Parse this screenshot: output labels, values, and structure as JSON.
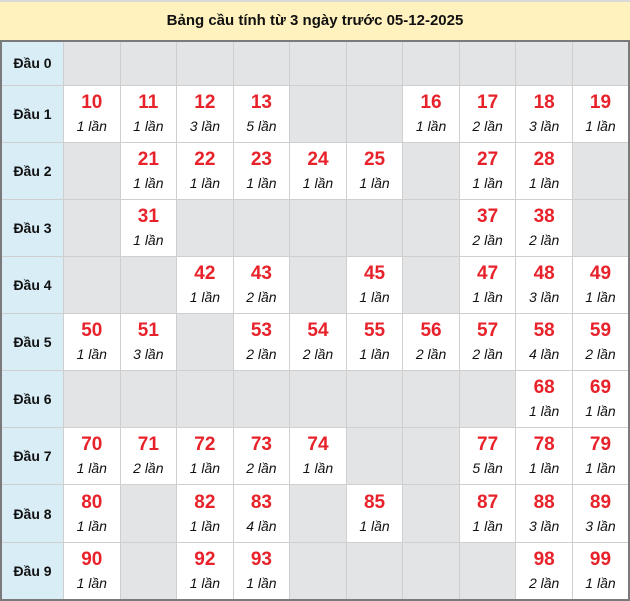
{
  "title": "Bảng cầu tính từ 3 ngày trước 05-12-2025",
  "colors": {
    "number": "#e8222b",
    "header_bg": "#d9edf7",
    "title_bg": "#fff2bf",
    "empty_bg": "#e3e4e6"
  },
  "rows": [
    {
      "label": "Đầu 0",
      "cells": [
        null,
        null,
        null,
        null,
        null,
        null,
        null,
        null,
        null,
        null
      ]
    },
    {
      "label": "Đầu 1",
      "cells": [
        {
          "n": "10",
          "c": "1 lần"
        },
        {
          "n": "11",
          "c": "1 lần"
        },
        {
          "n": "12",
          "c": "3 lần"
        },
        {
          "n": "13",
          "c": "5 lần"
        },
        null,
        null,
        {
          "n": "16",
          "c": "1 lần"
        },
        {
          "n": "17",
          "c": "2 lần"
        },
        {
          "n": "18",
          "c": "3 lần"
        },
        {
          "n": "19",
          "c": "1 lần"
        }
      ]
    },
    {
      "label": "Đầu 2",
      "cells": [
        null,
        {
          "n": "21",
          "c": "1 lần"
        },
        {
          "n": "22",
          "c": "1 lần"
        },
        {
          "n": "23",
          "c": "1 lần"
        },
        {
          "n": "24",
          "c": "1 lần"
        },
        {
          "n": "25",
          "c": "1 lần"
        },
        null,
        {
          "n": "27",
          "c": "1 lần"
        },
        {
          "n": "28",
          "c": "1 lần"
        },
        null
      ]
    },
    {
      "label": "Đầu 3",
      "cells": [
        null,
        {
          "n": "31",
          "c": "1 lần"
        },
        null,
        null,
        null,
        null,
        null,
        {
          "n": "37",
          "c": "2 lần"
        },
        {
          "n": "38",
          "c": "2 lần"
        },
        null
      ]
    },
    {
      "label": "Đầu 4",
      "cells": [
        null,
        null,
        {
          "n": "42",
          "c": "1 lần"
        },
        {
          "n": "43",
          "c": "2 lần"
        },
        null,
        {
          "n": "45",
          "c": "1 lần"
        },
        null,
        {
          "n": "47",
          "c": "1 lần"
        },
        {
          "n": "48",
          "c": "3 lần"
        },
        {
          "n": "49",
          "c": "1 lần"
        }
      ]
    },
    {
      "label": "Đầu 5",
      "cells": [
        {
          "n": "50",
          "c": "1 lần"
        },
        {
          "n": "51",
          "c": "3 lần"
        },
        null,
        {
          "n": "53",
          "c": "2 lần"
        },
        {
          "n": "54",
          "c": "2 lần"
        },
        {
          "n": "55",
          "c": "1 lần"
        },
        {
          "n": "56",
          "c": "2 lần"
        },
        {
          "n": "57",
          "c": "2 lần"
        },
        {
          "n": "58",
          "c": "4 lần"
        },
        {
          "n": "59",
          "c": "2 lần"
        }
      ]
    },
    {
      "label": "Đầu 6",
      "cells": [
        null,
        null,
        null,
        null,
        null,
        null,
        null,
        null,
        {
          "n": "68",
          "c": "1 lần"
        },
        {
          "n": "69",
          "c": "1 lần"
        }
      ]
    },
    {
      "label": "Đầu 7",
      "cells": [
        {
          "n": "70",
          "c": "1 lần"
        },
        {
          "n": "71",
          "c": "2 lần"
        },
        {
          "n": "72",
          "c": "1 lần"
        },
        {
          "n": "73",
          "c": "2 lần"
        },
        {
          "n": "74",
          "c": "1 lần"
        },
        null,
        null,
        {
          "n": "77",
          "c": "5 lần"
        },
        {
          "n": "78",
          "c": "1 lần"
        },
        {
          "n": "79",
          "c": "1 lần"
        }
      ]
    },
    {
      "label": "Đầu 8",
      "cells": [
        {
          "n": "80",
          "c": "1 lần"
        },
        null,
        {
          "n": "82",
          "c": "1 lần"
        },
        {
          "n": "83",
          "c": "4 lần"
        },
        null,
        {
          "n": "85",
          "c": "1 lần"
        },
        null,
        {
          "n": "87",
          "c": "1 lần"
        },
        {
          "n": "88",
          "c": "3 lần"
        },
        {
          "n": "89",
          "c": "3 lần"
        }
      ]
    },
    {
      "label": "Đầu 9",
      "cells": [
        {
          "n": "90",
          "c": "1 lần"
        },
        null,
        {
          "n": "92",
          "c": "1 lần"
        },
        {
          "n": "93",
          "c": "1 lần"
        },
        null,
        null,
        null,
        null,
        {
          "n": "98",
          "c": "2 lần"
        },
        {
          "n": "99",
          "c": "1 lần"
        }
      ]
    }
  ]
}
